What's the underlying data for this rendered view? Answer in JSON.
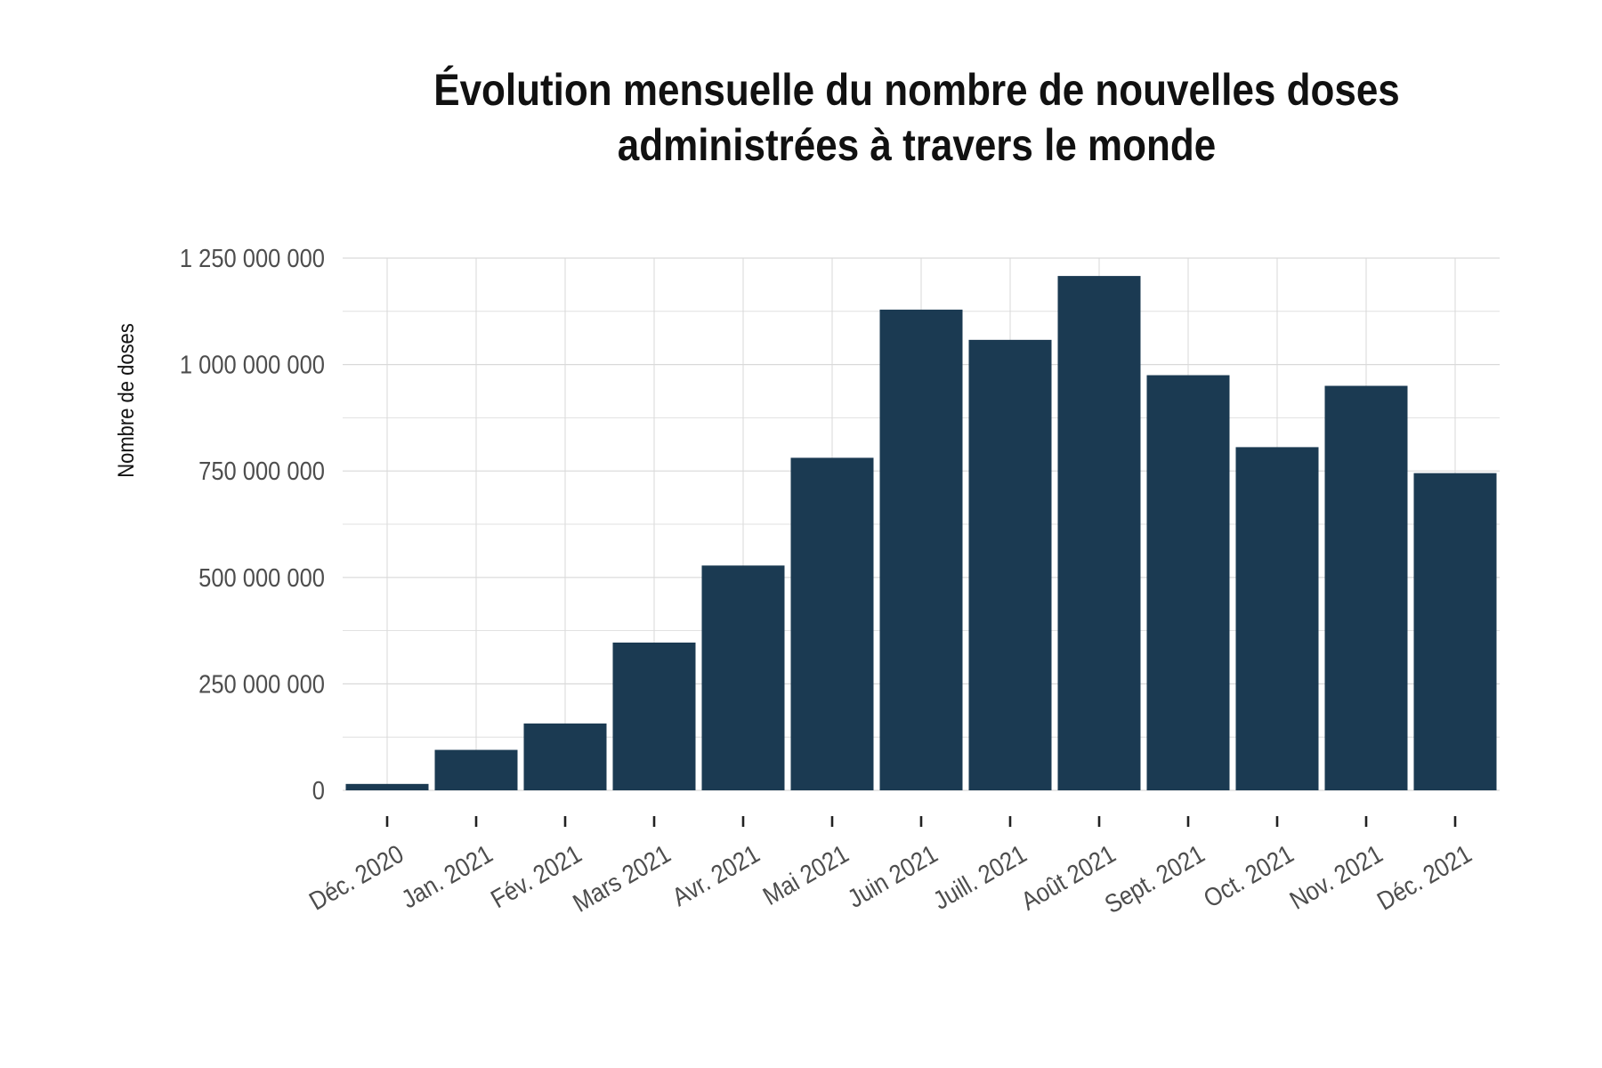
{
  "chart_data": {
    "type": "bar",
    "title_lines": [
      "Évolution mensuelle du nombre de nouvelles doses",
      "administrées à travers le monde"
    ],
    "xlabel": "",
    "ylabel": "Nombre de doses",
    "categories": [
      "Déc. 2020",
      "Jan. 2021",
      "Fév. 2021",
      "Mars 2021",
      "Avr. 2021",
      "Mai 2021",
      "Juin 2021",
      "Juill. 2021",
      "Août 2021",
      "Sept. 2021",
      "Oct. 2021",
      "Nov. 2021",
      "Déc. 2021"
    ],
    "values": [
      15000000,
      95000000,
      157000000,
      347000000,
      528000000,
      781000000,
      1129000000,
      1058000000,
      1208000000,
      975000000,
      806000000,
      950000000,
      745000000
    ],
    "ylim": [
      0,
      1250000000
    ],
    "yticks": [
      0,
      250000000,
      500000000,
      750000000,
      1000000000,
      1250000000
    ],
    "ytick_labels": [
      "0",
      "250 000 000",
      "500 000 000",
      "750 000 000",
      "1 000 000 000",
      "1 250 000 000"
    ],
    "grid": true,
    "legend": "none",
    "bar_color": "#1b3a52",
    "grid_color": "#d9d9d9",
    "background": "#ffffff"
  }
}
